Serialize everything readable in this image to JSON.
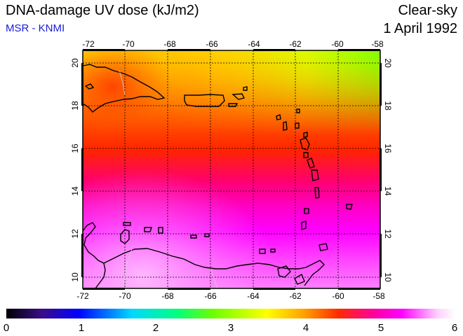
{
  "header": {
    "title": "DNA-damage UV dose (kJ/m2)",
    "subtitle": "MSR - KNMI",
    "sky_condition": "Clear-sky",
    "date": "1 April 1992"
  },
  "map": {
    "lon_ticks": [
      "-72",
      "-70",
      "-68",
      "-66",
      "-64",
      "-62",
      "-60",
      "-58"
    ],
    "lat_ticks": [
      "10",
      "12",
      "14",
      "16",
      "18",
      "20"
    ],
    "region": "Caribbean (Greater/Lesser Antilles, Venezuela coast)"
  },
  "colorbar": {
    "ticks": [
      "0",
      "1",
      "2",
      "3",
      "4",
      "5",
      "6"
    ],
    "colors": [
      "#000000",
      "#3a0d8a",
      "#0000ff",
      "#00d8ff",
      "#00ff7f",
      "#6cff00",
      "#ffff00",
      "#ffa500",
      "#ff2a00",
      "#ff00a0",
      "#ff00ff",
      "#ffd0ff",
      "#ffffff"
    ]
  }
}
